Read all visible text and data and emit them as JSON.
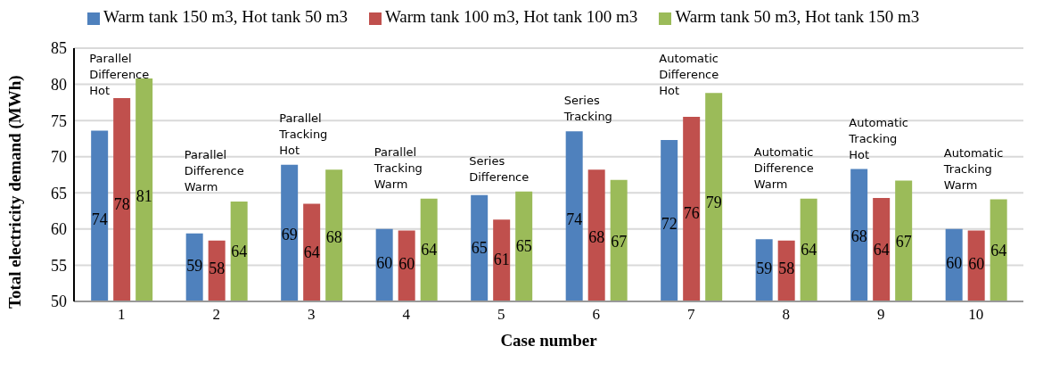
{
  "chart_data": {
    "type": "bar",
    "xlabel": "Case number",
    "ylabel": "Total electricity demand (MWh)",
    "categories": [
      "1",
      "2",
      "3",
      "4",
      "5",
      "6",
      "7",
      "8",
      "9",
      "10"
    ],
    "series": [
      {
        "name": "Warm tank 150 m3, Hot tank 50 m3",
        "color": "#4f81bd",
        "values": [
          73.6,
          59.4,
          68.9,
          60.0,
          64.7,
          73.5,
          72.3,
          58.6,
          68.3,
          60.0
        ],
        "value_labels": [
          "74",
          "59",
          "69",
          "60",
          "65",
          "74",
          "72",
          "59",
          "68",
          "60"
        ]
      },
      {
        "name": "Warm tank 100 m3, Hot tank 100 m3",
        "color": "#c0504d",
        "values": [
          78.1,
          58.4,
          63.5,
          59.8,
          61.3,
          68.2,
          75.5,
          58.4,
          64.3,
          59.8
        ],
        "value_labels": [
          "78",
          "58",
          "64",
          "60",
          "61",
          "68",
          "76",
          "58",
          "64",
          "60"
        ]
      },
      {
        "name": "Warm tank 50 m3, Hot tank 150 m3",
        "color": "#9bbb59",
        "values": [
          80.8,
          63.8,
          68.2,
          64.2,
          65.2,
          66.8,
          78.8,
          64.2,
          66.7,
          64.1
        ],
        "value_labels": [
          "81",
          "64",
          "68",
          "64",
          "65",
          "67",
          "79",
          "64",
          "67",
          "64"
        ]
      }
    ],
    "ylim": [
      50,
      85
    ],
    "yticks": [
      50,
      55,
      60,
      65,
      70,
      75,
      80,
      85
    ],
    "grid": "y",
    "legend": "top",
    "annotations": [
      "Parallel\nDifference\nHot",
      "Parallel\nDifference\nWarm",
      "Parallel\nTracking\nHot",
      "Parallel\nTracking\nWarm",
      "Series\nDifference",
      "Series\nTracking",
      "Automatic\nDifference\nHot",
      "Automatic\nDifference\nWarm",
      "Automatic\nTracking\nHot",
      "Automatic\nTracking\nWarm"
    ]
  }
}
